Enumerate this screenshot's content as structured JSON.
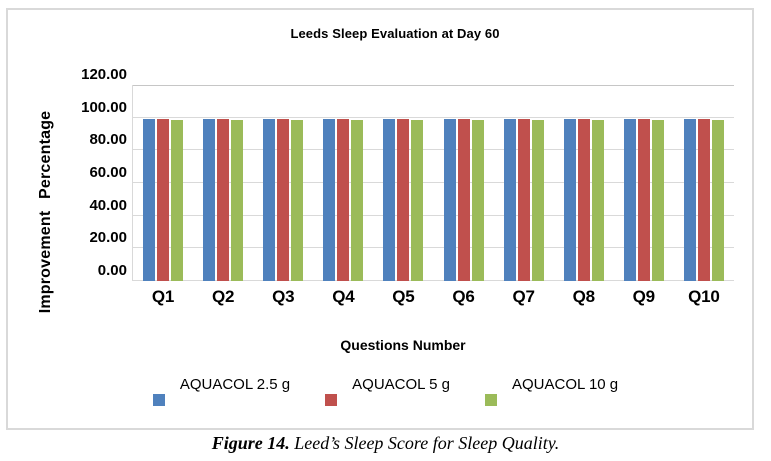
{
  "figure": {
    "caption_prefix": "Figure 14.",
    "caption_text": " Leed’s Sleep Score for Sleep Quality."
  },
  "chart_data": {
    "type": "bar",
    "title": "Leeds Sleep Evaluation at Day 60",
    "xlabel": "Questions Number",
    "ylabel": "Improvement Percentage",
    "categories": [
      "Q1",
      "Q2",
      "Q3",
      "Q4",
      "Q5",
      "Q6",
      "Q7",
      "Q8",
      "Q9",
      "Q10"
    ],
    "series": [
      {
        "name": "AQUACOL 2.5 g",
        "color": "#4F81BD",
        "values": [
          99,
          99,
          99,
          99,
          99,
          99,
          99,
          99,
          99,
          99
        ]
      },
      {
        "name": "AQUACOL 5 g",
        "color": "#C0504D",
        "values": [
          99,
          99,
          99,
          99,
          99,
          99,
          99,
          99,
          99,
          99
        ]
      },
      {
        "name": "AQUACOL 10 g",
        "color": "#9BBB59",
        "values": [
          98.5,
          98.5,
          98.5,
          98.5,
          98.5,
          98.5,
          98.5,
          98.5,
          98.5,
          98.5
        ]
      }
    ],
    "ylim": [
      0,
      120
    ],
    "ytick_step": 20,
    "ytick_labels": [
      "0.00",
      "20.00",
      "40.00",
      "60.00",
      "80.00",
      "100.00",
      "120.00"
    ],
    "grid": true,
    "legend_position": "bottom",
    "gridline_color": "#D9D9D9",
    "plot_border_color": "#D9D9D9"
  }
}
